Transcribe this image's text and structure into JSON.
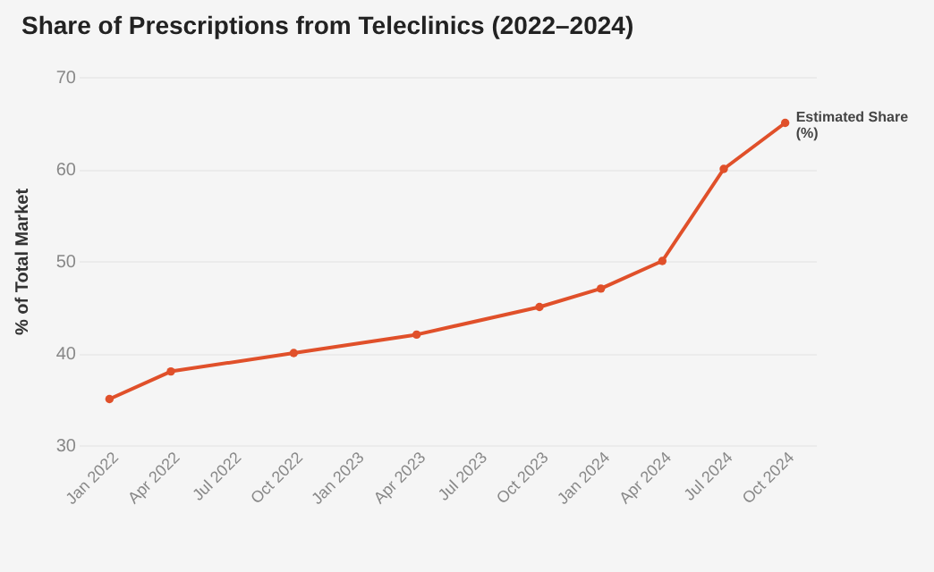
{
  "chart_data": {
    "type": "line",
    "title": "Share of Prescriptions from Teleclinics (2022–2024)",
    "ylabel": "% of Total Market",
    "categories": [
      "Jan 2022",
      "Apr 2022",
      "Jul 2022",
      "Oct 2022",
      "Jan 2023",
      "Apr 2023",
      "Jul 2023",
      "Oct 2023",
      "Jan 2024",
      "Apr 2024",
      "Jul 2024",
      "Oct 2024"
    ],
    "series": [
      {
        "name": "Estimated Share (%)",
        "color": "#e0502a",
        "values": [
          35,
          38,
          null,
          40,
          null,
          42,
          null,
          45,
          47,
          50,
          60,
          65
        ]
      }
    ],
    "ylim": [
      30,
      70
    ],
    "yticks": [
      30,
      40,
      50,
      60,
      70
    ],
    "grid": "y",
    "legend": false,
    "marker": "circle"
  }
}
